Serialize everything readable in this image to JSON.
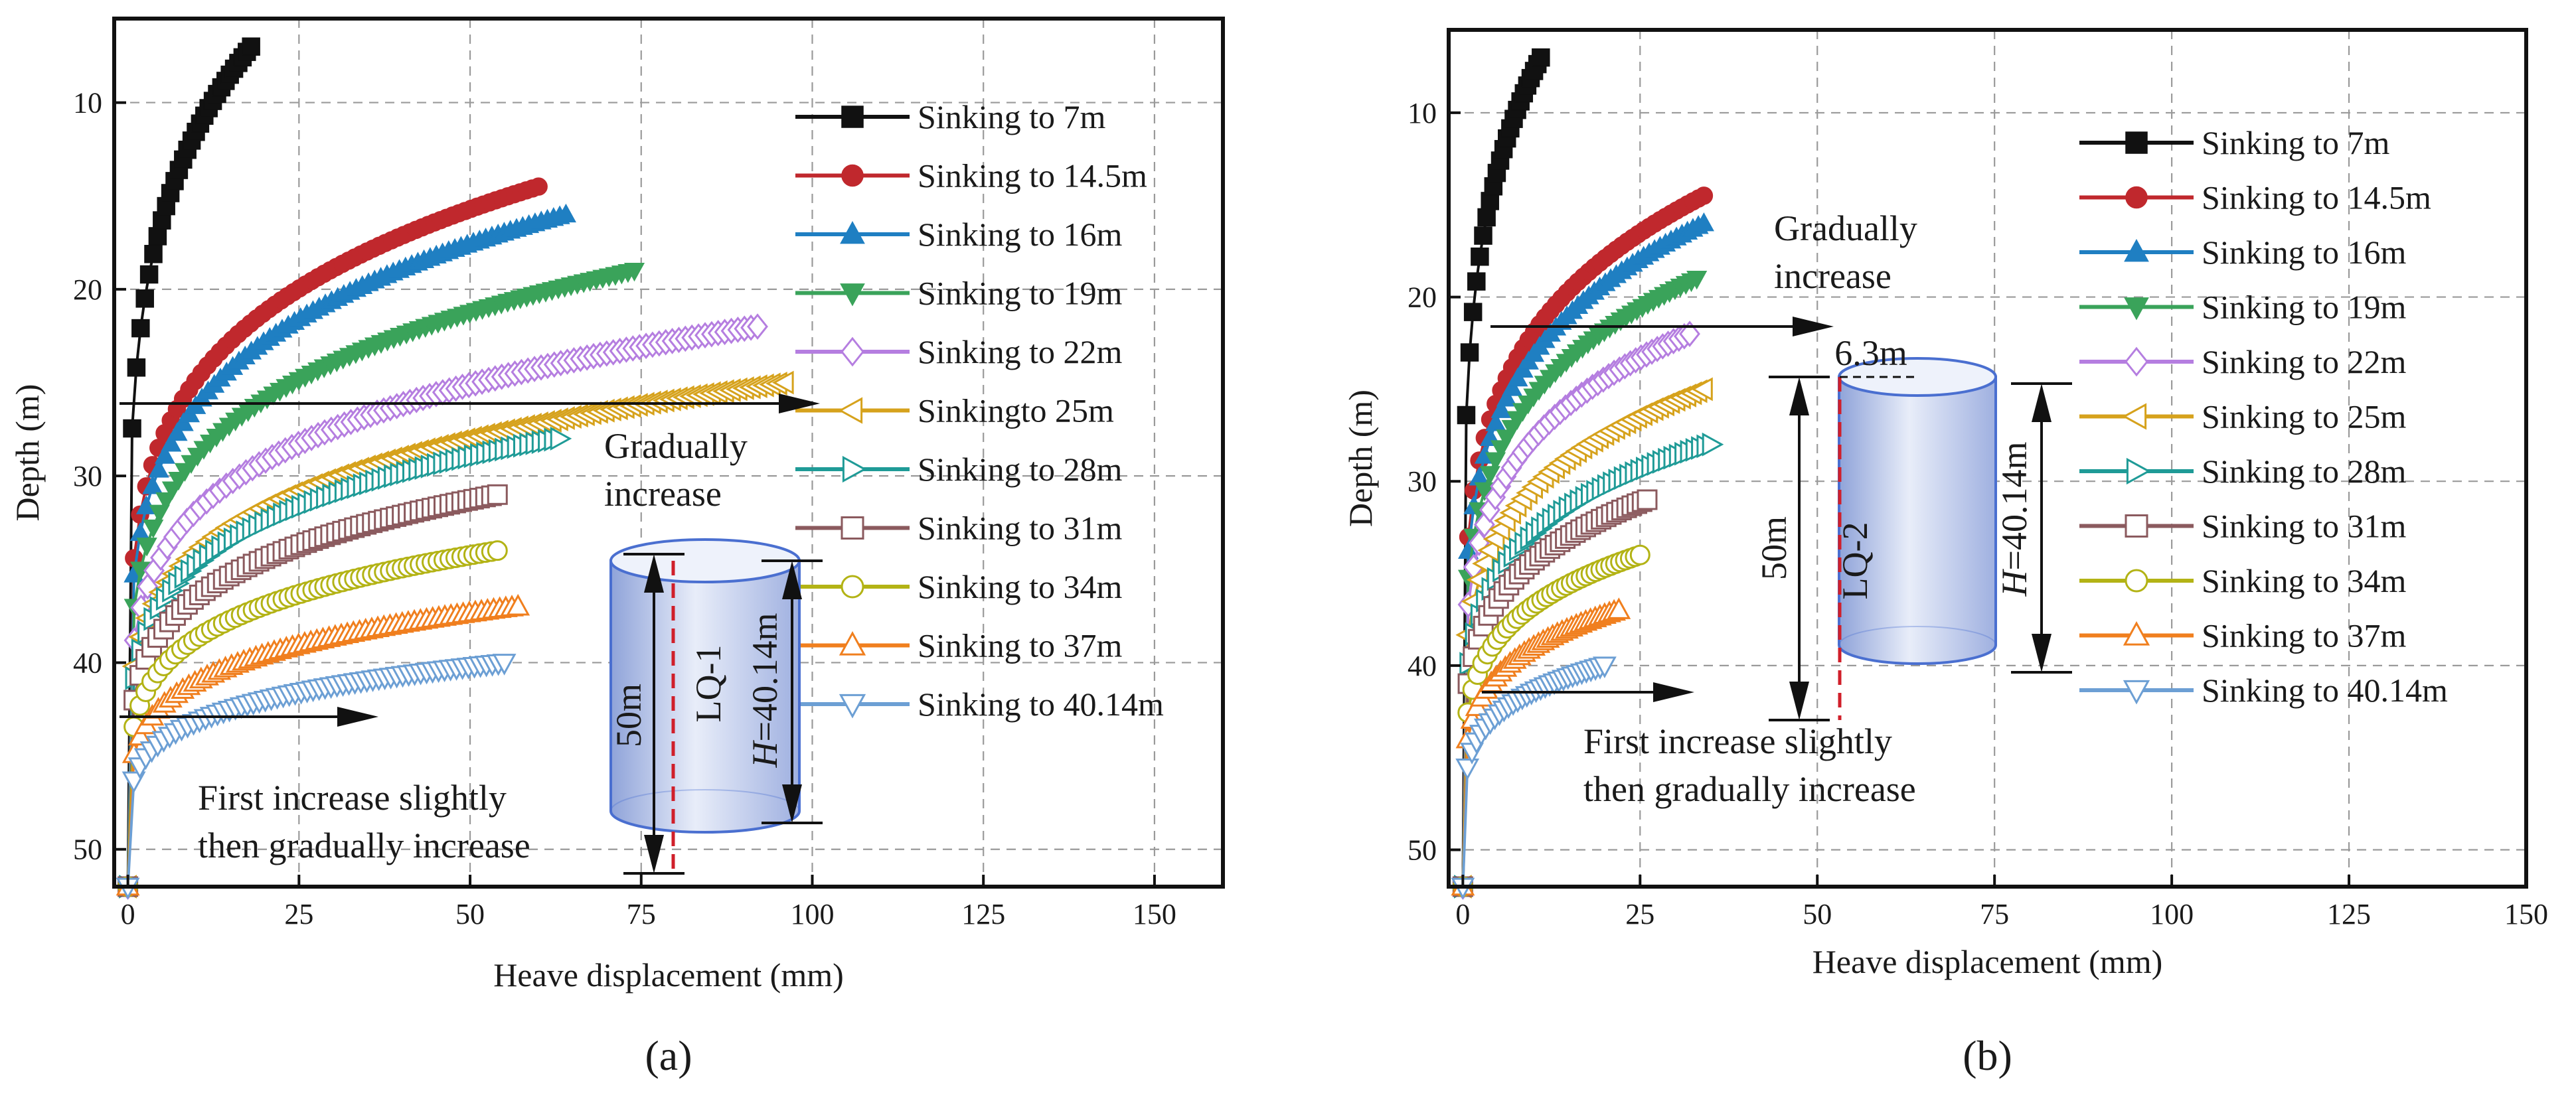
{
  "chart_data": [
    {
      "type": "line",
      "panel_label": "(a)",
      "title": "",
      "xlabel": "Heave displacement (mm)",
      "ylabel": "Depth (m)",
      "xlim": [
        -2,
        160
      ],
      "ylim": [
        52,
        5.5
      ],
      "xticks": [
        0,
        25,
        50,
        75,
        100,
        125,
        150
      ],
      "yticks": [
        10,
        20,
        30,
        40,
        50
      ],
      "grid": true,
      "legend_position": "top-right",
      "series": [
        {
          "name": "Sinking to 7m",
          "color": "#111111",
          "marker": "square",
          "filled": true,
          "max_heave": 18,
          "start_depth": 7
        },
        {
          "name": "Sinking to 14.5m",
          "color": "#c0282d",
          "marker": "circle",
          "filled": true,
          "max_heave": 60,
          "start_depth": 14.5
        },
        {
          "name": "Sinking  to 16m",
          "color": "#1f7fc2",
          "marker": "triangle-up",
          "filled": true,
          "max_heave": 64,
          "start_depth": 16
        },
        {
          "name": "Sinking to 19m",
          "color": "#3aa35a",
          "marker": "triangle-down",
          "filled": true,
          "max_heave": 74,
          "start_depth": 19
        },
        {
          "name": "Sinking to 22m",
          "color": "#b57ee0",
          "marker": "diamond",
          "filled": false,
          "max_heave": 92,
          "start_depth": 22
        },
        {
          "name": "Sinkingto 25m",
          "color": "#d6a21c",
          "marker": "triangle-left",
          "filled": false,
          "max_heave": 96,
          "start_depth": 25
        },
        {
          "name": "Sinking to 28m",
          "color": "#1f9b97",
          "marker": "triangle-right",
          "filled": false,
          "max_heave": 63,
          "start_depth": 28
        },
        {
          "name": "Sinking to 31m",
          "color": "#8b5a5e",
          "marker": "square",
          "filled": false,
          "max_heave": 54,
          "start_depth": 31
        },
        {
          "name": "Sinking to 34m",
          "color": "#b3b315",
          "marker": "circle",
          "filled": false,
          "max_heave": 54,
          "start_depth": 34
        },
        {
          "name": "Sinking to 37m",
          "color": "#f07f1e",
          "marker": "triangle-up",
          "filled": false,
          "max_heave": 57,
          "start_depth": 37
        },
        {
          "name": "Sinking to 40.14m",
          "color": "#6c9fd4",
          "marker": "triangle-down",
          "filled": false,
          "max_heave": 55,
          "start_depth": 40
        }
      ],
      "annotations": {
        "gradual_1": "Gradually",
        "gradual_2": "increase",
        "first_1": "First increase slightly",
        "first_2": "then gradually increase",
        "pile_name": "LQ-1",
        "pile_length": "50m",
        "sink_depth": "H=40.14m",
        "sink_depth_italic": "H",
        "sink_depth_value": "=40.14m"
      }
    },
    {
      "type": "line",
      "panel_label": "(b)",
      "title": "",
      "xlabel": "Heave displacement (mm)",
      "ylabel": "Depth (m)",
      "xlim": [
        -2,
        150
      ],
      "ylim": [
        52,
        5.5
      ],
      "xticks": [
        0,
        25,
        50,
        75,
        100,
        125,
        150
      ],
      "yticks": [
        10,
        20,
        30,
        40,
        50
      ],
      "grid": true,
      "legend_position": "top-right",
      "series": [
        {
          "name": "Sinking to 7m",
          "color": "#111111",
          "marker": "square",
          "filled": true,
          "max_heave": 11,
          "start_depth": 7
        },
        {
          "name": "Sinking to 14.5m",
          "color": "#c0282d",
          "marker": "circle",
          "filled": true,
          "max_heave": 34,
          "start_depth": 14.5
        },
        {
          "name": "Sinking to 16m",
          "color": "#1f7fc2",
          "marker": "triangle-up",
          "filled": true,
          "max_heave": 34,
          "start_depth": 16
        },
        {
          "name": "Sinking to 19m",
          "color": "#3aa35a",
          "marker": "triangle-down",
          "filled": true,
          "max_heave": 33,
          "start_depth": 19
        },
        {
          "name": "Sinking to 22m",
          "color": "#b57ee0",
          "marker": "diamond",
          "filled": false,
          "max_heave": 32,
          "start_depth": 22
        },
        {
          "name": "Sinking to 25m",
          "color": "#d6a21c",
          "marker": "triangle-left",
          "filled": false,
          "max_heave": 34,
          "start_depth": 25
        },
        {
          "name": "Sinking to 28m",
          "color": "#1f9b97",
          "marker": "triangle-right",
          "filled": false,
          "max_heave": 35,
          "start_depth": 28
        },
        {
          "name": "Sinking to 31m",
          "color": "#8b5a5e",
          "marker": "square",
          "filled": false,
          "max_heave": 26,
          "start_depth": 31
        },
        {
          "name": "Sinking to 34m",
          "color": "#b3b315",
          "marker": "circle",
          "filled": false,
          "max_heave": 25,
          "start_depth": 34
        },
        {
          "name": "Sinking to 37m",
          "color": "#f07f1e",
          "marker": "triangle-up",
          "filled": false,
          "max_heave": 22,
          "start_depth": 37
        },
        {
          "name": "Sinking to 40.14m",
          "color": "#6c9fd4",
          "marker": "triangle-down",
          "filled": false,
          "max_heave": 20,
          "start_depth": 40
        }
      ],
      "annotations": {
        "gradual_1": "Gradually",
        "gradual_2": "increase",
        "first_1": "First increase slightly",
        "first_2": "then gradually increase",
        "pile_name": "LQ-2",
        "pile_length": "50m",
        "sink_depth": "H=40.14m",
        "sink_depth_italic": "H",
        "sink_depth_value": "=40.14m",
        "offset": "6.3m"
      }
    }
  ]
}
